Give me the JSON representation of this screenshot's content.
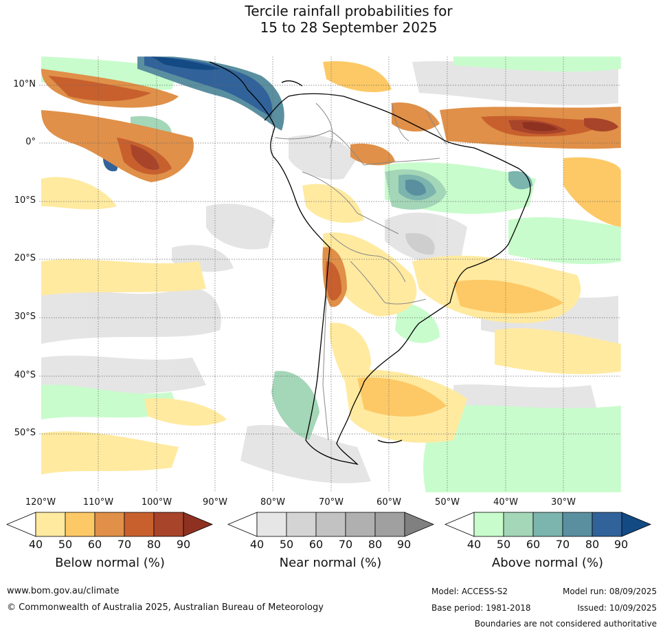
{
  "title": {
    "line1": "Tercile rainfall probabilities for",
    "line2": "15 to 28 September 2025"
  },
  "axes": {
    "lat_ticks": [
      "10°N",
      "0°",
      "10°S",
      "20°S",
      "30°S",
      "40°S",
      "50°S"
    ],
    "lon_ticks": [
      "120°W",
      "110°W",
      "100°W",
      "90°W",
      "80°W",
      "70°W",
      "60°W",
      "50°W",
      "40°W",
      "30°W"
    ]
  },
  "colorbars": {
    "below": {
      "title": "Below normal (%)",
      "ticks": [
        "40",
        "50",
        "60",
        "70",
        "80",
        "90"
      ],
      "colors": [
        "#ffffff",
        "#ffeaa0",
        "#fdc966",
        "#e09048",
        "#c8602e",
        "#a8442a",
        "#8e3120"
      ]
    },
    "near": {
      "title": "Near normal (%)",
      "ticks": [
        "40",
        "50",
        "60",
        "70",
        "80",
        "90"
      ],
      "colors": [
        "#ffffff",
        "#e6e6e6",
        "#d4d4d4",
        "#c2c2c2",
        "#b0b0b0",
        "#a0a0a0",
        "#808080"
      ]
    },
    "above": {
      "title": "Above normal (%)",
      "ticks": [
        "40",
        "50",
        "60",
        "70",
        "80",
        "90"
      ],
      "colors": [
        "#ffffff",
        "#c8fccc",
        "#a4d6b8",
        "#7cb4ae",
        "#5a8fa0",
        "#31639a",
        "#134a84"
      ]
    }
  },
  "footer": {
    "url": "www.bom.gov.au/climate",
    "copyright": "© Commonwealth of Australia 2025, Australian Bureau of Meteorology",
    "model": "Model: ACCESS-S2",
    "base_period": "Base period: 1981-2018",
    "model_run": "Model run: 08/09/2025",
    "issued": "Issued: 10/09/2025",
    "disclaimer": "Boundaries are not considered authoritative"
  }
}
